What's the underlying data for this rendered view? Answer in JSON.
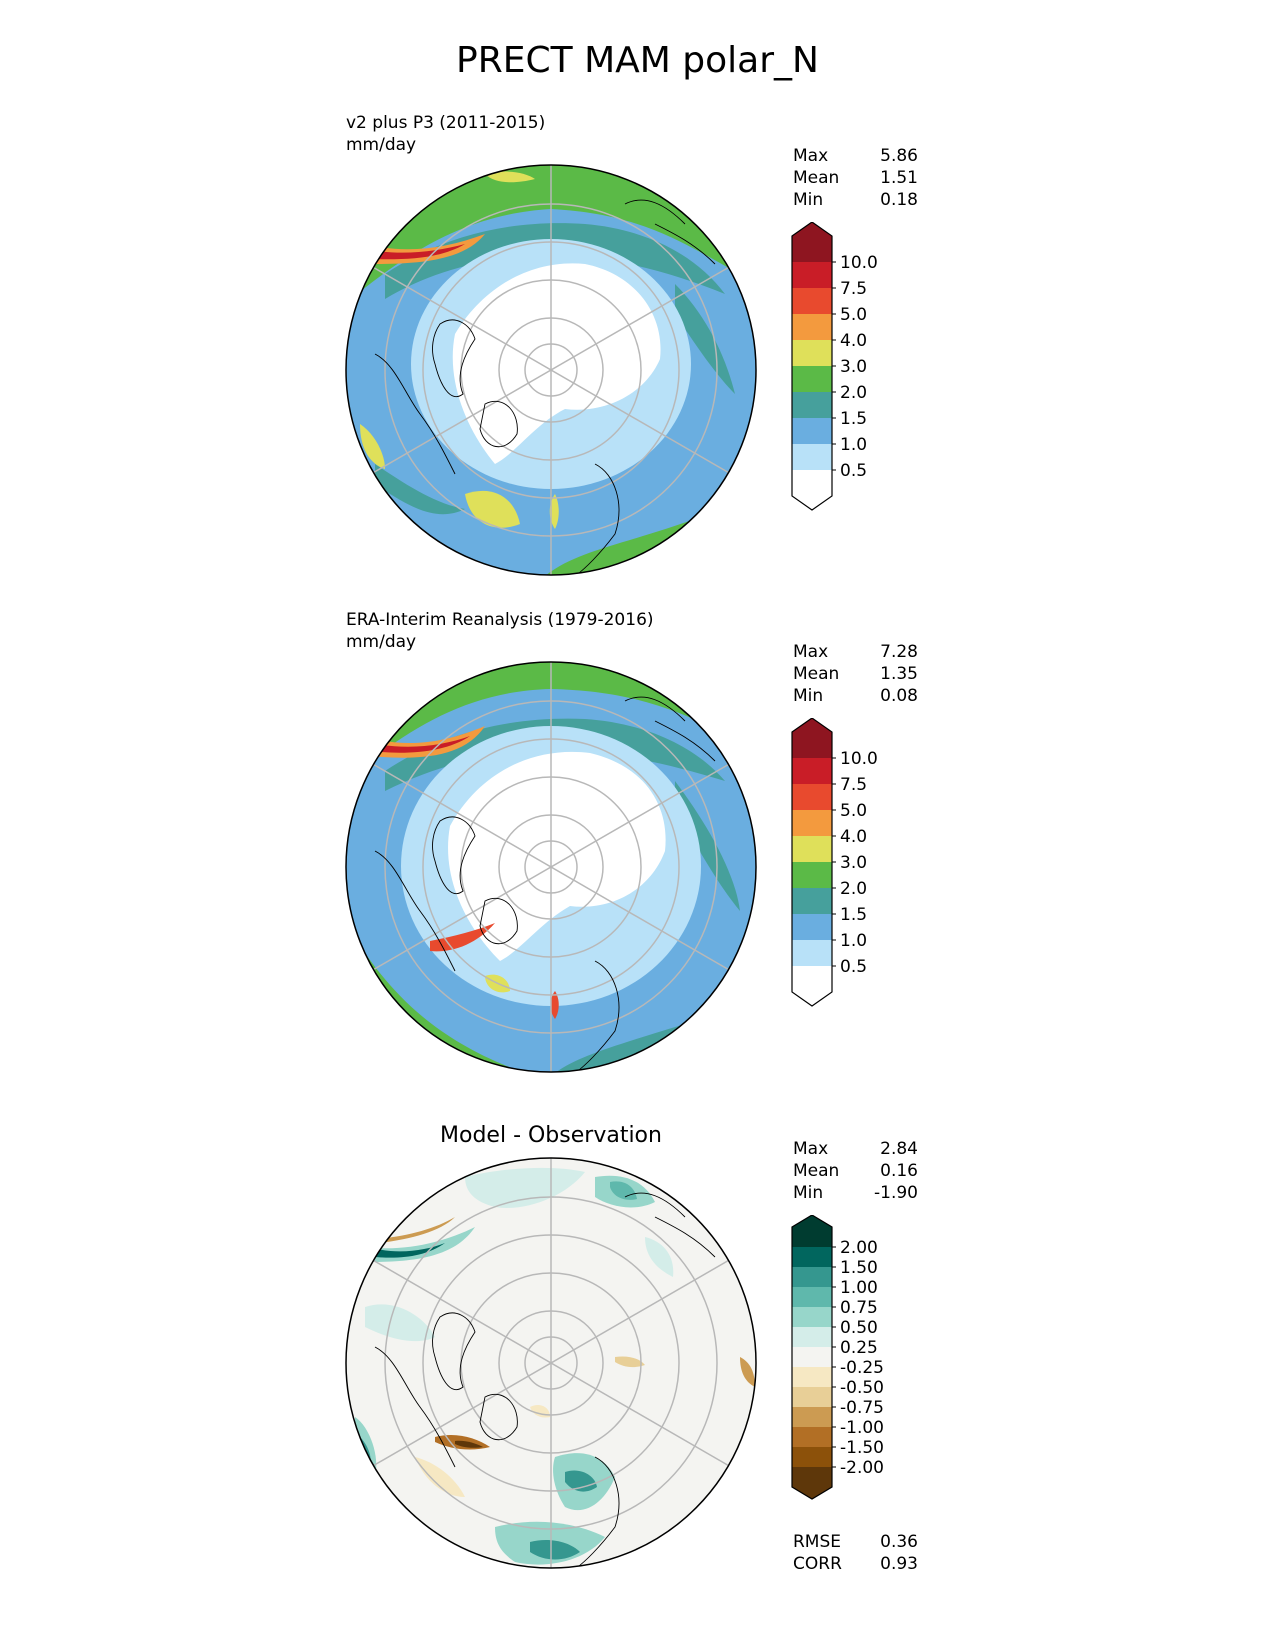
{
  "figure": {
    "title": "PRECT MAM polar_N"
  },
  "panels": [
    {
      "name": "test",
      "title": "v2 plus P3 (2011-2015)",
      "units": "mm/day",
      "stats": [
        {
          "label": "Max",
          "value": "5.86"
        },
        {
          "label": "Mean",
          "value": "1.51"
        },
        {
          "label": "Min",
          "value": "0.18"
        }
      ]
    },
    {
      "name": "reference",
      "title": "ERA-Interim Reanalysis (1979-2016)",
      "units": "mm/day",
      "stats": [
        {
          "label": "Max",
          "value": "7.28"
        },
        {
          "label": "Mean",
          "value": "1.35"
        },
        {
          "label": "Min",
          "value": "0.08"
        }
      ]
    },
    {
      "name": "difference",
      "title": "Model - Observation",
      "stats": [
        {
          "label": "Max",
          "value": "2.84"
        },
        {
          "label": "Mean",
          "value": "0.16"
        },
        {
          "label": "Min",
          "value": "-1.90"
        }
      ],
      "metrics": [
        {
          "label": "RMSE",
          "value": "0.36"
        },
        {
          "label": "CORR",
          "value": "0.93"
        }
      ]
    }
  ],
  "colorbars": {
    "precip": {
      "labels": [
        "10.0",
        "7.5",
        "5.0",
        "4.0",
        "3.0",
        "2.0",
        "1.5",
        "1.0",
        "0.5"
      ],
      "colors": [
        "#8e1520",
        "#c91d27",
        "#e84a2e",
        "#f39a3e",
        "#dfe05a",
        "#5bba47",
        "#46a09c",
        "#6aaee0",
        "#b8e1f8",
        "#ffffff"
      ]
    },
    "diff": {
      "labels": [
        "2.00",
        "1.50",
        "1.00",
        "0.75",
        "0.50",
        "0.25",
        "-0.25",
        "-0.50",
        "-0.75",
        "-1.00",
        "-1.50",
        "-2.00"
      ],
      "colors": [
        "#003c30",
        "#01665e",
        "#35978f",
        "#5fb8ac",
        "#97d6ca",
        "#d4ede9",
        "#f4f4f1",
        "#f6e8c3",
        "#e8cf97",
        "#cc9b52",
        "#b26f25",
        "#8c510a",
        "#5e370a"
      ]
    }
  }
}
